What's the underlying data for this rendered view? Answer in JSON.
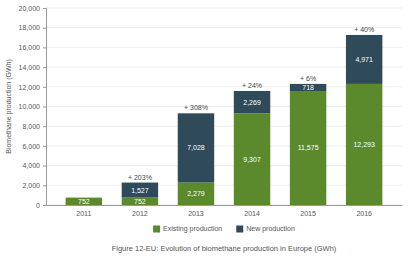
{
  "chart_data": {
    "type": "bar",
    "stacked": true,
    "title": "Figure 12-EU: Evolution of biomethane production in Europe (GWh)",
    "y_label": "Biomethane production (GWh)",
    "categories": [
      "2011",
      "2012",
      "2013",
      "2014",
      "2015",
      "2016"
    ],
    "series": [
      {
        "name": "Existing production",
        "color": "#5a8a2c",
        "values": [
          752,
          752,
          2279,
          9307,
          11575,
          12293
        ],
        "value_labels": [
          "752",
          "752",
          "2,279",
          "9,307",
          "11,575",
          "12,293"
        ]
      },
      {
        "name": "New production",
        "color": "#2f4a58",
        "values": [
          null,
          1527,
          7028,
          2269,
          718,
          4971
        ],
        "value_labels": [
          null,
          "1,527",
          "7,028",
          "2,269",
          "718",
          "4,971"
        ]
      }
    ],
    "annotations": [
      null,
      "+ 203%",
      "+ 308%",
      "+ 24%",
      "+ 6%",
      "+ 40%"
    ],
    "ylim": [
      0,
      20000
    ],
    "yticks": [
      0,
      {
        "value": 2000,
        "label": "2,000"
      },
      {
        "value": 4000,
        "label": "4,000"
      },
      {
        "value": 6000,
        "label": "6,000"
      },
      {
        "value": 8000,
        "label": "8,000"
      },
      {
        "value": 10000,
        "label": "10,000"
      },
      {
        "value": 12000,
        "label": "12,000"
      },
      {
        "value": 14000,
        "label": "14,000"
      },
      {
        "value": 16000,
        "label": "16,000"
      },
      {
        "value": 18000,
        "label": "18,000"
      },
      {
        "value": 20000,
        "label": "20,000"
      }
    ],
    "grid": true,
    "data_labels": true,
    "legend": "bottom"
  }
}
